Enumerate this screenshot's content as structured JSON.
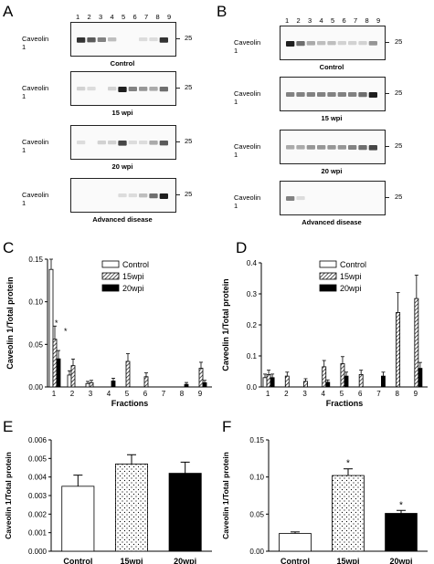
{
  "panels": {
    "A": "A",
    "B": "B",
    "C": "C",
    "D": "D",
    "E": "E",
    "F": "F"
  },
  "lanes": [
    "1",
    "2",
    "3",
    "4",
    "5",
    "6",
    "7",
    "8",
    "9"
  ],
  "blots": {
    "A": [
      {
        "protein": "Caveolin 1",
        "condition": "Control",
        "mw": "25"
      },
      {
        "protein": "Caveolin 1",
        "condition": "15 wpi",
        "mw": "25"
      },
      {
        "protein": "Caveolin 1",
        "condition": "20 wpi",
        "mw": "25"
      },
      {
        "protein": "Caveolin 1",
        "condition": "Advanced disease",
        "mw": "25"
      }
    ],
    "B": [
      {
        "protein": "Caveolin 1",
        "condition": "Control",
        "mw": "25"
      },
      {
        "protein": "Caveolin 1",
        "condition": "15 wpi",
        "mw": "25"
      },
      {
        "protein": "Caveolin 1",
        "condition": "20 wpi",
        "mw": "25"
      },
      {
        "protein": "Caveolin 1",
        "condition": "Advanced disease",
        "mw": "25"
      }
    ]
  },
  "chart_data": [
    {
      "panel": "C",
      "type": "bar",
      "categories": [
        "1",
        "2",
        "3",
        "4",
        "5",
        "6",
        "7",
        "8",
        "9"
      ],
      "xlabel": "Fractions",
      "ylabel": "Caveolin 1/Total protein",
      "ylim": [
        0,
        0.15
      ],
      "yticks": [
        "0.00",
        "0.05",
        "0.10",
        "0.15"
      ],
      "series": [
        {
          "name": "Control",
          "values": [
            0.138,
            0.014,
            0.004,
            0,
            0,
            0,
            0,
            0,
            0
          ]
        },
        {
          "name": "15wpi",
          "values": [
            0.056,
            0.025,
            0.005,
            0,
            0.03,
            0.012,
            0,
            0,
            0.022
          ]
        },
        {
          "name": "20wpi",
          "values": [
            0.033,
            0,
            0,
            0.007,
            0,
            0,
            0,
            0.003,
            0.005
          ]
        }
      ],
      "annotations": [
        "*",
        "*"
      ]
    },
    {
      "panel": "D",
      "type": "bar",
      "categories": [
        "1",
        "2",
        "3",
        "4",
        "5",
        "6",
        "7",
        "8",
        "9"
      ],
      "xlabel": "Fractions",
      "ylabel": "Caveolin 1/Total protein",
      "ylim": [
        0,
        0.4
      ],
      "yticks": [
        "0.0",
        "0.1",
        "0.2",
        "0.3",
        "0.4"
      ],
      "series": [
        {
          "name": "Control",
          "values": [
            0.03,
            0,
            0,
            0,
            0,
            0,
            0,
            0,
            0
          ]
        },
        {
          "name": "15wpi",
          "values": [
            0.04,
            0.035,
            0.018,
            0.065,
            0.075,
            0.04,
            0,
            0.24,
            0.285
          ]
        },
        {
          "name": "20wpi",
          "values": [
            0.03,
            0,
            0,
            0.015,
            0.035,
            0,
            0.035,
            0,
            0.06
          ]
        }
      ]
    },
    {
      "panel": "E",
      "type": "bar",
      "categories": [
        "Control",
        "15wpi",
        "20wpi"
      ],
      "ylabel": "Caveolin 1/Total protein",
      "ylim": [
        0,
        0.006
      ],
      "yticks": [
        "0.000",
        "0.001",
        "0.002",
        "0.003",
        "0.004",
        "0.005",
        "0.006"
      ],
      "values": [
        0.0035,
        0.0047,
        0.0042
      ],
      "errors": [
        0.0006,
        0.0005,
        0.0006
      ]
    },
    {
      "panel": "F",
      "type": "bar",
      "categories": [
        "Control",
        "15wpi",
        "20wpi"
      ],
      "ylabel": "Caveolin 1/Total protein",
      "ylim": [
        0,
        0.15
      ],
      "yticks": [
        "0.00",
        "0.05",
        "0.10",
        "0.15"
      ],
      "values": [
        0.024,
        0.102,
        0.051
      ],
      "errors": [
        0.002,
        0.009,
        0.004
      ],
      "significance": [
        "",
        "*",
        "*"
      ]
    }
  ]
}
